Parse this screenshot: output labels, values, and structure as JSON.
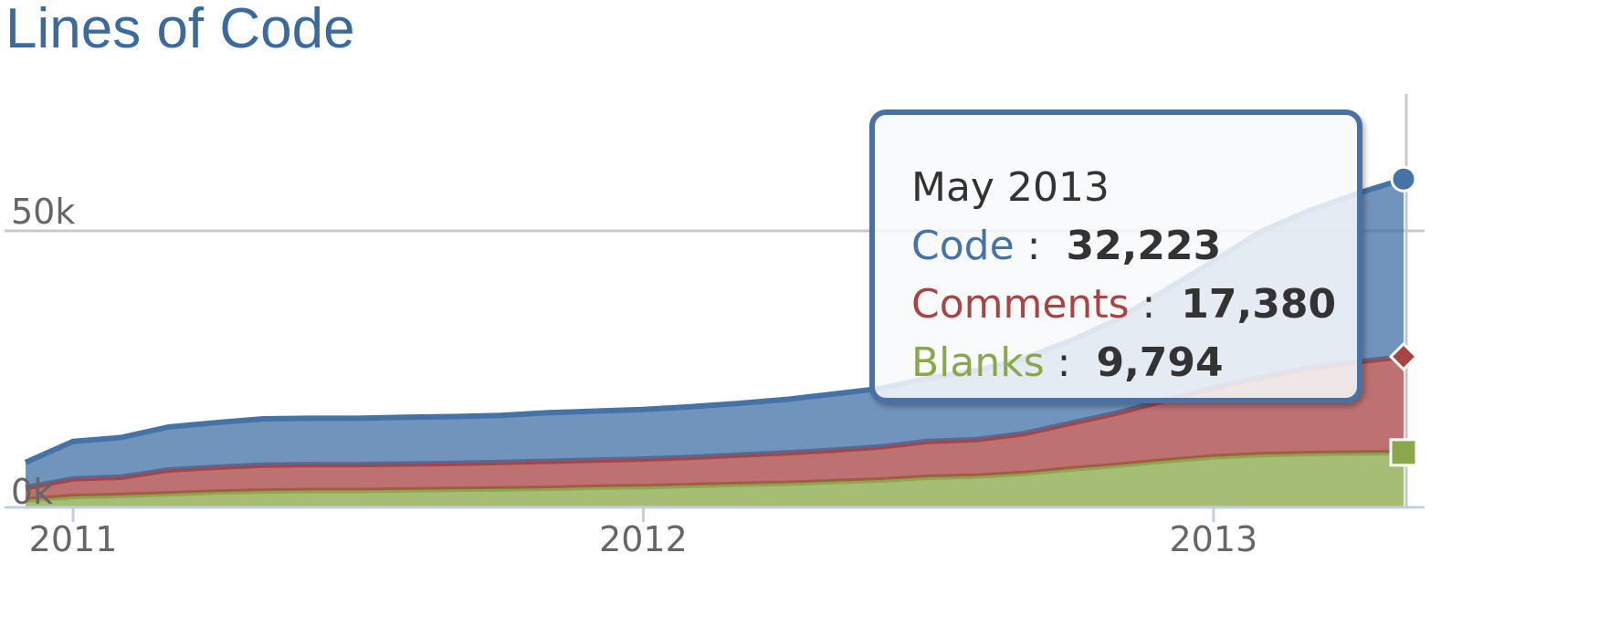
{
  "title": "Lines of Code",
  "chart_data": {
    "type": "area",
    "stacked": true,
    "title": "Lines of Code",
    "xlabel": "",
    "ylabel": "",
    "x_ticks": [
      "2011",
      "2012",
      "2013"
    ],
    "y_ticks": [
      {
        "value": 0,
        "label": "0k"
      },
      {
        "value": 50000,
        "label": "50k"
      }
    ],
    "ylim": [
      0,
      75000
    ],
    "grid": true,
    "legend": "none",
    "x": [
      "2010-12",
      "2011-01",
      "2011-02",
      "2011-03",
      "2011-04",
      "2011-05",
      "2011-06",
      "2011-07",
      "2011-08",
      "2011-09",
      "2011-10",
      "2011-11",
      "2011-12",
      "2012-01",
      "2012-02",
      "2012-03",
      "2012-04",
      "2012-05",
      "2012-06",
      "2012-07",
      "2012-08",
      "2012-09",
      "2012-10",
      "2012-11",
      "2012-12",
      "2013-01",
      "2013-02",
      "2013-03",
      "2013-04",
      "2013-05"
    ],
    "series": [
      {
        "name": "Blanks",
        "color": "#8aa84b",
        "values": [
          1200,
          1800,
          2000,
          2300,
          2600,
          2800,
          2900,
          2900,
          3000,
          3100,
          3200,
          3300,
          3500,
          3600,
          3800,
          4000,
          4200,
          4500,
          4800,
          5300,
          5500,
          6000,
          6800,
          7500,
          8300,
          9000,
          9400,
          9600,
          9700,
          9794
        ]
      },
      {
        "name": "Comments",
        "color": "#a94444",
        "values": [
          2200,
          3200,
          3300,
          4300,
          4500,
          4700,
          4700,
          4700,
          4700,
          4700,
          4800,
          4900,
          4900,
          5000,
          5100,
          5300,
          5500,
          5700,
          6000,
          6500,
          6600,
          7200,
          8300,
          9500,
          11000,
          12500,
          14000,
          15500,
          16500,
          17380
        ]
      },
      {
        "name": "Code",
        "color": "#4572a7",
        "values": [
          4600,
          6800,
          7200,
          7800,
          8100,
          8400,
          8400,
          8400,
          8500,
          8500,
          8500,
          8800,
          8900,
          9000,
          9200,
          9400,
          9700,
          10200,
          10600,
          11500,
          12500,
          13600,
          15000,
          17000,
          20000,
          23000,
          26500,
          28500,
          30500,
          32223
        ]
      }
    ],
    "tooltip": {
      "date": "May 2013",
      "rows": [
        {
          "name": "Code",
          "value": "32,223",
          "color": "#4572a7"
        },
        {
          "name": "Comments",
          "value": "17,380",
          "color": "#a94444"
        },
        {
          "name": "Blanks",
          "value": "9,794",
          "color": "#8aa84b"
        }
      ]
    }
  }
}
